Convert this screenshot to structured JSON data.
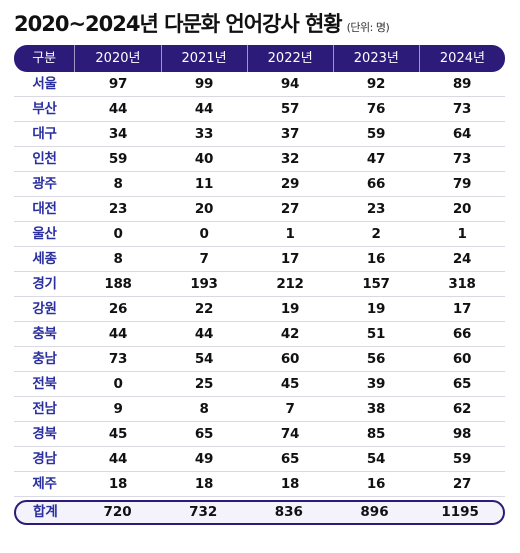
{
  "title": "2020~2024년 다문화 언어강사 현황",
  "unit": "(단위: 명)",
  "chart_data": {
    "type": "table",
    "title": "2020~2024년 다문화 언어강사 현황",
    "unit": "(단위: 명)",
    "columns": [
      "구분",
      "2020년",
      "2021년",
      "2022년",
      "2023년",
      "2024년"
    ],
    "rows": [
      {
        "region": "서울",
        "values": [
          97,
          99,
          94,
          92,
          89
        ]
      },
      {
        "region": "부산",
        "values": [
          44,
          44,
          57,
          76,
          73
        ]
      },
      {
        "region": "대구",
        "values": [
          34,
          33,
          37,
          59,
          64
        ]
      },
      {
        "region": "인천",
        "values": [
          59,
          40,
          32,
          47,
          73
        ]
      },
      {
        "region": "광주",
        "values": [
          8,
          11,
          29,
          66,
          79
        ]
      },
      {
        "region": "대전",
        "values": [
          23,
          20,
          27,
          23,
          20
        ]
      },
      {
        "region": "울산",
        "values": [
          0,
          0,
          1,
          2,
          1
        ]
      },
      {
        "region": "세종",
        "values": [
          8,
          7,
          17,
          16,
          24
        ]
      },
      {
        "region": "경기",
        "values": [
          188,
          193,
          212,
          157,
          318
        ]
      },
      {
        "region": "강원",
        "values": [
          26,
          22,
          19,
          19,
          17
        ]
      },
      {
        "region": "충북",
        "values": [
          44,
          44,
          42,
          51,
          66
        ]
      },
      {
        "region": "충남",
        "values": [
          73,
          54,
          60,
          56,
          60
        ]
      },
      {
        "region": "전북",
        "values": [
          0,
          25,
          45,
          39,
          65
        ]
      },
      {
        "region": "전남",
        "values": [
          9,
          8,
          7,
          38,
          62
        ]
      },
      {
        "region": "경북",
        "values": [
          45,
          65,
          74,
          85,
          98
        ]
      },
      {
        "region": "경남",
        "values": [
          44,
          49,
          65,
          54,
          59
        ]
      },
      {
        "region": "제주",
        "values": [
          18,
          18,
          18,
          16,
          27
        ]
      }
    ],
    "total": {
      "region": "합계",
      "values": [
        720,
        732,
        836,
        896,
        1195
      ]
    }
  },
  "colors": {
    "accent": "#2d1b7a",
    "region_text": "#2a2f9e"
  }
}
